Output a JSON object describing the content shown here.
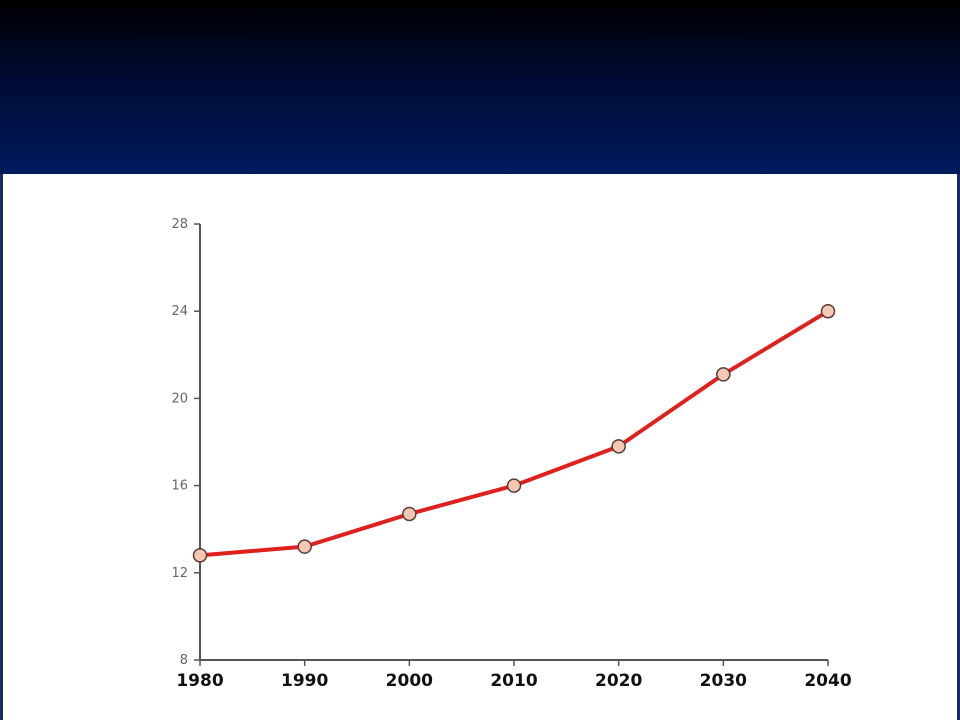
{
  "chart_data": {
    "type": "line",
    "x": [
      1980,
      1990,
      2000,
      2010,
      2020,
      2030,
      2040
    ],
    "x_tick_labels": [
      "1980",
      "1990",
      "2000",
      "2010",
      "2020",
      "2030",
      "2040"
    ],
    "y_ticks": [
      8,
      12,
      16,
      20,
      24,
      28
    ],
    "y_tick_labels": [
      "8",
      "12",
      "16",
      "20",
      "24",
      "28"
    ],
    "series": [
      {
        "values": [
          12.8,
          13.2,
          14.7,
          16.0,
          17.8,
          21.1,
          24.0
        ]
      }
    ],
    "xlim": [
      1980,
      2040
    ],
    "ylim": [
      8,
      28
    ],
    "grid": false,
    "colors": {
      "line": "#e0201c",
      "marker_fill": "#f5c8b4",
      "marker_stroke": "#5a3a3a",
      "axis": "#555555",
      "x_tick_text": "#111111",
      "y_tick_text": "#666666"
    }
  }
}
